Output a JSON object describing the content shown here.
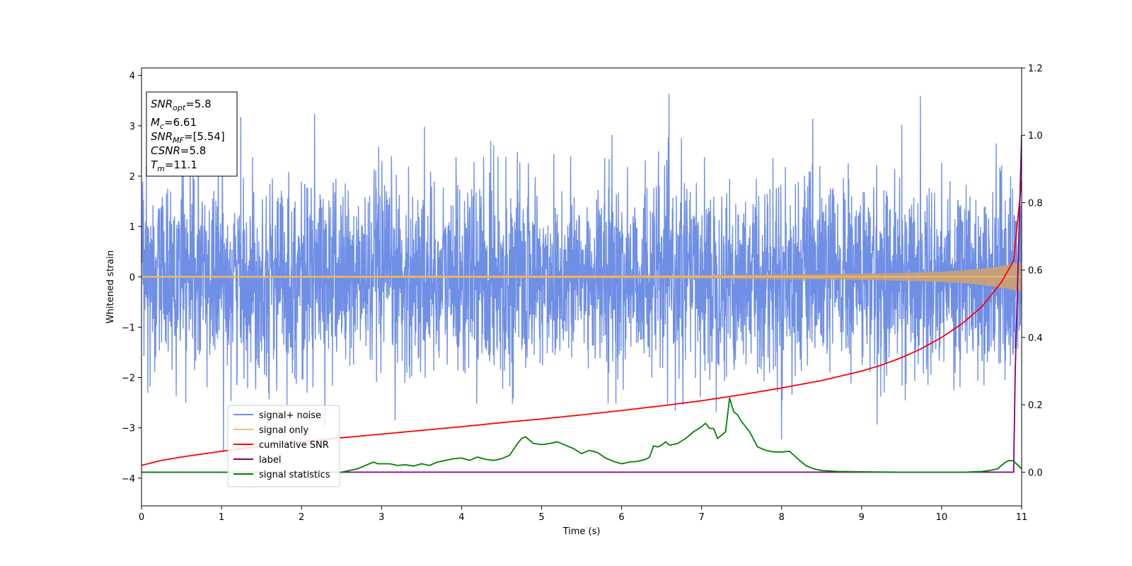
{
  "chart_data": {
    "type": "line",
    "xlabel": "Time (s)",
    "ylabel": "Whitened strain",
    "xlim": [
      0,
      11
    ],
    "ylim": [
      -4.55,
      4.15
    ],
    "ylim_right": [
      -0.1,
      1.2
    ],
    "x_ticks": [
      0,
      1,
      2,
      3,
      4,
      5,
      6,
      7,
      8,
      9,
      10,
      11
    ],
    "x_tick_labels": [
      "0",
      "1",
      "2",
      "3",
      "4",
      "5",
      "6",
      "7",
      "8",
      "9",
      "10",
      "11"
    ],
    "y_ticks": [
      4,
      3,
      2,
      1,
      0,
      -1,
      -2,
      -3,
      -4
    ],
    "y_tick_labels": [
      "4",
      "3",
      "2",
      "1",
      "0",
      "−1",
      "−2",
      "−3",
      "−4"
    ],
    "y2_ticks": [
      1.2,
      1.0,
      0.8,
      0.6,
      0.4,
      0.2,
      0.0
    ],
    "y2_tick_labels": [
      "1.2",
      "1.0",
      "0.8",
      "0.6",
      "0.4",
      "0.2",
      "0.0"
    ],
    "grid": false,
    "legend_position": "lower-left",
    "info_box": {
      "lines": [
        {
          "sym": "SNR",
          "sub": "opt",
          "value": "=5.8"
        },
        {
          "sym": "M",
          "sub": "c",
          "value": "=6.61"
        },
        {
          "sym": "SNR",
          "sub": "MF",
          "value": "=[5.54]"
        },
        {
          "sym": "CSNR",
          "sub": "",
          "value": "=5.8"
        },
        {
          "sym": "T",
          "sub": "m",
          "value": "=11.1"
        }
      ]
    },
    "series": [
      {
        "name": "signal+ noise",
        "axis": "left",
        "color": "#6f8fe6",
        "noise_std": 0.95,
        "noise_range": [
          -4.15,
          3.78
        ]
      },
      {
        "name": "signal only",
        "axis": "left",
        "color": "#f5c36b",
        "fill_color": "#c8a076",
        "amplitude": {
          "x": [
            0,
            2,
            4,
            6,
            7,
            8,
            9,
            9.5,
            10,
            10.3,
            10.6,
            10.8,
            10.95,
            11
          ],
          "y": [
            0.02,
            0.022,
            0.025,
            0.03,
            0.035,
            0.045,
            0.06,
            0.075,
            0.1,
            0.13,
            0.18,
            0.23,
            0.28,
            0.3
          ]
        }
      },
      {
        "name": "cumilative SNR",
        "axis": "right",
        "color": "#ff0000",
        "x": [
          0,
          0.25,
          0.5,
          1,
          1.5,
          2,
          2.5,
          3,
          3.5,
          4,
          4.5,
          5,
          5.5,
          6,
          6.5,
          7,
          7.5,
          8,
          8.5,
          9,
          9.25,
          9.5,
          9.75,
          10,
          10.25,
          10.5,
          10.75,
          10.9,
          11
        ],
        "y": [
          0.02,
          0.035,
          0.045,
          0.062,
          0.077,
          0.09,
          0.102,
          0.113,
          0.124,
          0.135,
          0.147,
          0.158,
          0.17,
          0.183,
          0.197,
          0.212,
          0.23,
          0.25,
          0.272,
          0.3,
          0.318,
          0.34,
          0.367,
          0.4,
          0.44,
          0.49,
          0.565,
          0.628,
          0.865
        ]
      },
      {
        "name": "label",
        "axis": "right",
        "color": "#800080",
        "x": [
          0,
          10.9,
          10.92,
          11
        ],
        "y": [
          0,
          0,
          0.3,
          1.0
        ]
      },
      {
        "name": "signal statistics",
        "axis": "right",
        "color": "#008000",
        "x": [
          0,
          2.5,
          2.7,
          2.85,
          2.9,
          2.95,
          3.1,
          3.2,
          3.3,
          3.4,
          3.5,
          3.6,
          3.7,
          3.8,
          3.9,
          4.0,
          4.1,
          4.2,
          4.3,
          4.4,
          4.5,
          4.6,
          4.7,
          4.75,
          4.8,
          4.85,
          4.9,
          5.0,
          5.1,
          5.2,
          5.3,
          5.4,
          5.5,
          5.6,
          5.7,
          5.8,
          5.9,
          6.0,
          6.1,
          6.2,
          6.3,
          6.35,
          6.4,
          6.45,
          6.5,
          6.55,
          6.6,
          6.7,
          6.8,
          6.9,
          7.0,
          7.05,
          7.1,
          7.15,
          7.2,
          7.25,
          7.3,
          7.35,
          7.4,
          7.45,
          7.5,
          7.6,
          7.7,
          7.8,
          7.9,
          8.0,
          8.1,
          8.2,
          8.3,
          8.4,
          8.5,
          8.7,
          9.0,
          9.5,
          10.0,
          10.3,
          10.5,
          10.6,
          10.7,
          10.75,
          10.8,
          10.85,
          10.9,
          11.0
        ],
        "y": [
          0.0,
          0.0,
          0.01,
          0.025,
          0.03,
          0.025,
          0.025,
          0.02,
          0.022,
          0.018,
          0.025,
          0.02,
          0.03,
          0.035,
          0.04,
          0.042,
          0.035,
          0.045,
          0.038,
          0.035,
          0.04,
          0.05,
          0.085,
          0.1,
          0.105,
          0.095,
          0.085,
          0.082,
          0.085,
          0.09,
          0.08,
          0.07,
          0.055,
          0.065,
          0.058,
          0.042,
          0.032,
          0.025,
          0.03,
          0.032,
          0.038,
          0.045,
          0.078,
          0.075,
          0.08,
          0.09,
          0.08,
          0.085,
          0.1,
          0.12,
          0.135,
          0.145,
          0.13,
          0.13,
          0.1,
          0.11,
          0.12,
          0.22,
          0.18,
          0.17,
          0.15,
          0.12,
          0.075,
          0.065,
          0.06,
          0.06,
          0.062,
          0.04,
          0.02,
          0.01,
          0.005,
          0.002,
          0.001,
          0.0,
          0.0,
          0.0,
          0.002,
          0.005,
          0.01,
          0.02,
          0.03,
          0.035,
          0.033,
          0.01
        ]
      }
    ]
  }
}
